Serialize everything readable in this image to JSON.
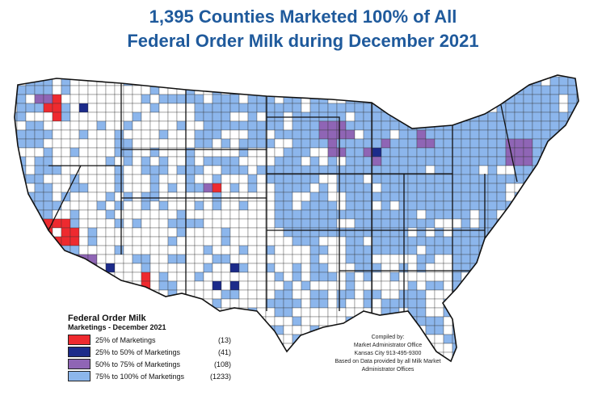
{
  "title": {
    "line1": "1,395 Counties Marketed 100% of All",
    "line2": "Federal Order Milk during December 2021"
  },
  "colors": {
    "q25": "#ee2a2f",
    "q50": "#1c2b8a",
    "q75": "#8f65b5",
    "q100": "#8cb6ec",
    "none": "#ffffff",
    "outline": "#1a1a1a"
  },
  "legend": {
    "title": "Federal Order Milk",
    "subtitle": "Marketings - December 2021",
    "items": [
      {
        "label": "25% of Marketings",
        "count": "(13)",
        "color": "#ee2a2f"
      },
      {
        "label": "25% to 50% of Marketings",
        "count": "(41)",
        "color": "#1c2b8a"
      },
      {
        "label": "50% to 75% of Marketings",
        "count": "(108)",
        "color": "#8f65b5"
      },
      {
        "label": "75% to 100% of Marketings",
        "count": "(1233)",
        "color": "#8cb6ec"
      }
    ]
  },
  "credits": {
    "line1": "Compiled by:",
    "line2": "Market Administrator Office",
    "line3": "Kansas City 913-495-9300",
    "line4": "Based on Data provided by all Milk Market",
    "line5": "Administrator Offices"
  }
}
